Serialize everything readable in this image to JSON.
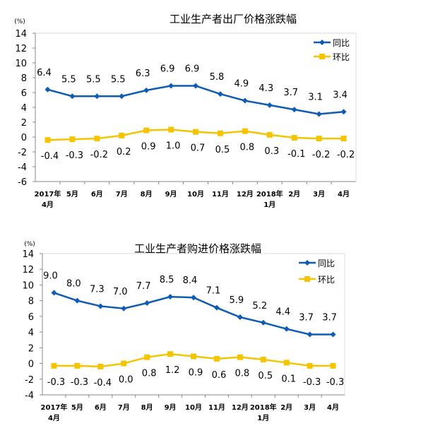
{
  "chart_data": [
    {
      "type": "line",
      "title": "工业生产者出厂价格涨跌幅",
      "ylabel": "(%)",
      "ylim": [
        -6,
        14
      ],
      "yticks": [
        14,
        12,
        10,
        8,
        6,
        4,
        2,
        0,
        -2,
        -4,
        -6
      ],
      "categories": [
        "2017年\n4月",
        "5月",
        "6月",
        "7月",
        "8月",
        "9月",
        "10月",
        "11月",
        "12月",
        "2018年\n1月",
        "2月",
        "3月",
        "4月"
      ],
      "legend_position": "top-right",
      "series": [
        {
          "name": "同比",
          "color": "#0E5CB4",
          "marker": "diamond",
          "values": [
            6.4,
            5.5,
            5.5,
            5.5,
            6.3,
            6.9,
            6.9,
            5.8,
            4.9,
            4.3,
            3.7,
            3.1,
            3.4
          ]
        },
        {
          "name": "环比",
          "color": "#F5C400",
          "marker": "square",
          "values": [
            -0.4,
            -0.3,
            -0.2,
            0.2,
            0.9,
            1.0,
            0.7,
            0.5,
            0.8,
            0.3,
            -0.1,
            -0.2,
            -0.2
          ]
        }
      ]
    },
    {
      "type": "line",
      "title": "工业生产者购进价格涨跌幅",
      "ylabel": "(%)",
      "ylim": [
        -4,
        14
      ],
      "yticks": [
        14,
        12,
        10,
        8,
        6,
        4,
        2,
        0,
        -2,
        -4
      ],
      "categories": [
        "2017年\n4月",
        "5月",
        "6月",
        "7月",
        "8月",
        "9月",
        "10月",
        "11月",
        "12月",
        "2018年\n1月",
        "2月",
        "3月",
        "4月"
      ],
      "legend_position": "top-right",
      "series": [
        {
          "name": "同比",
          "color": "#0E5CB4",
          "marker": "diamond",
          "values": [
            9.0,
            8.0,
            7.3,
            7.0,
            7.7,
            8.5,
            8.4,
            7.1,
            5.9,
            5.2,
            4.4,
            3.7,
            3.7
          ]
        },
        {
          "name": "环比",
          "color": "#F5C400",
          "marker": "square",
          "values": [
            -0.3,
            -0.3,
            -0.4,
            0.0,
            0.8,
            1.2,
            0.9,
            0.6,
            0.8,
            0.5,
            0.1,
            -0.3,
            -0.3
          ]
        }
      ]
    }
  ]
}
